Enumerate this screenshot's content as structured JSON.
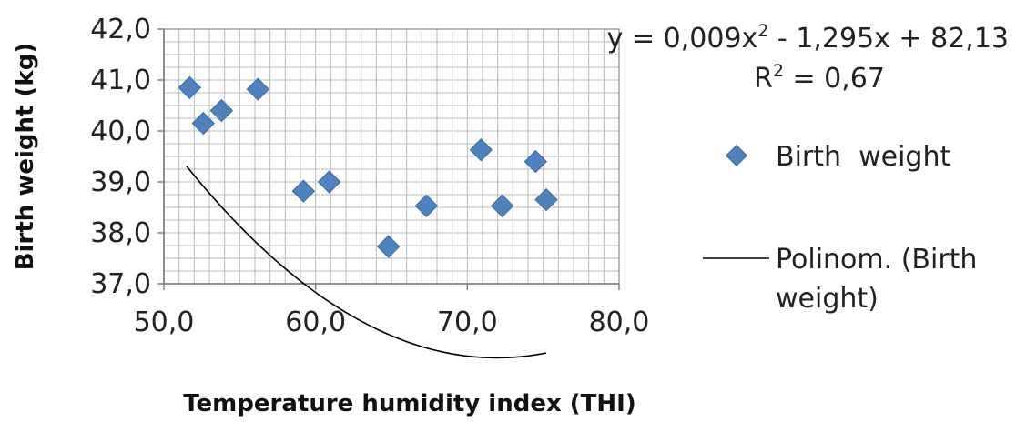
{
  "chart_data": {
    "type": "scatter",
    "xlabel": "Temperature humidity index (THI)",
    "ylabel": "Birth weight (kg)",
    "xlim": [
      50,
      80
    ],
    "ylim": [
      37,
      42
    ],
    "xticks": [
      "50,0",
      "60,0",
      "70,0",
      "80,0"
    ],
    "yticks": [
      "37,0",
      "38,0",
      "39,0",
      "40,0",
      "41,0",
      "42,0"
    ],
    "grid": true,
    "legend_position": "right",
    "series": [
      {
        "name": "Birth  weight",
        "marker": "diamond",
        "color": "#4f81bd",
        "points": [
          {
            "x": 51.7,
            "y": 40.85
          },
          {
            "x": 52.6,
            "y": 40.15
          },
          {
            "x": 53.8,
            "y": 40.4
          },
          {
            "x": 56.2,
            "y": 40.82
          },
          {
            "x": 59.2,
            "y": 38.82
          },
          {
            "x": 60.9,
            "y": 39.0
          },
          {
            "x": 64.8,
            "y": 37.73
          },
          {
            "x": 67.3,
            "y": 38.53
          },
          {
            "x": 70.9,
            "y": 39.63
          },
          {
            "x": 72.3,
            "y": 38.53
          },
          {
            "x": 74.5,
            "y": 39.4
          },
          {
            "x": 75.2,
            "y": 38.65
          }
        ]
      }
    ],
    "trendline": {
      "name_line1": "Polinom. (Birth",
      "name_line2": "weight)",
      "type": "polynomial",
      "order": 2,
      "coefficients": {
        "a": 0.009,
        "b": -1.295,
        "c": 82.13
      },
      "x_range": [
        51.5,
        75.2
      ],
      "color": "#000000",
      "equation": {
        "prefix": "y = 0,009x",
        "power": "2",
        "suffix": " - 1,295x + 82,13",
        "r2_prefix": "R",
        "r2_power": "2",
        "r2_suffix": " = 0,67"
      }
    }
  }
}
